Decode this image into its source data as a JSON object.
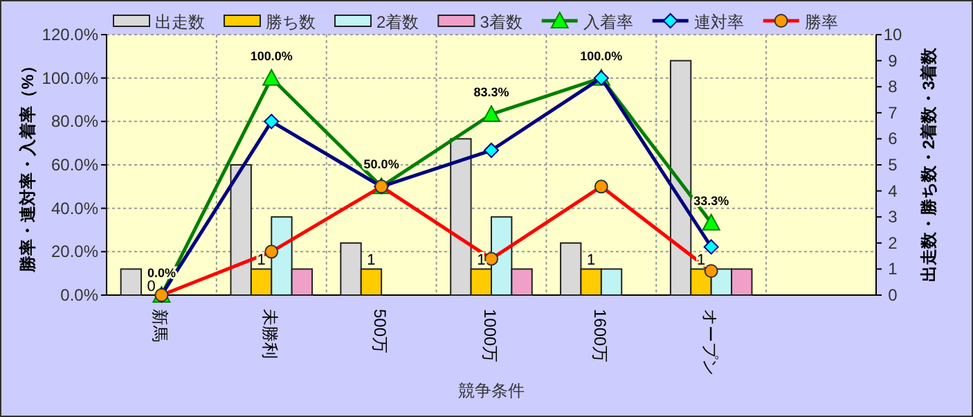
{
  "chart_data": {
    "type": "bar",
    "xlabel": "競争条件",
    "ylabel": "勝率・連対率・入着率（%）",
    "y2label": "出走数・勝ち数・2着数・3着数",
    "categories": [
      "新馬",
      "未勝利",
      "500万",
      "1000万",
      "1600万",
      "オープン",
      null
    ],
    "series": [
      {
        "name": "出走数",
        "type": "bar",
        "axis": "y2",
        "color": "#d9d9d9",
        "values": [
          1,
          5,
          2,
          6,
          2,
          9,
          null
        ]
      },
      {
        "name": "勝ち数",
        "type": "bar",
        "axis": "y2",
        "color": "#ffcc00",
        "values": [
          0,
          1,
          1,
          1,
          1,
          1,
          null
        ],
        "value_labels": [
          "0",
          "1",
          "1",
          "1",
          "1",
          "1",
          null
        ]
      },
      {
        "name": "2着数",
        "type": "bar",
        "axis": "y2",
        "color": "#c0f4f4",
        "values": [
          0,
          3,
          0,
          3,
          1,
          1,
          null
        ]
      },
      {
        "name": "3着数",
        "type": "bar",
        "axis": "y2",
        "color": "#f0a0c8",
        "values": [
          0,
          1,
          0,
          1,
          0,
          1,
          null
        ]
      },
      {
        "name": "入着率",
        "type": "line",
        "color": "#008000",
        "marker": "triangle",
        "values": [
          0,
          100,
          50,
          83.3,
          100,
          33.3,
          null
        ],
        "value_labels": [
          "0.0%",
          "100.0%",
          "50.0%",
          "83.3%",
          "100.0%",
          "33.3%",
          null
        ]
      },
      {
        "name": "連対率",
        "type": "line",
        "color": "#000080",
        "marker": "diamond",
        "values": [
          0,
          80,
          50,
          66.7,
          100,
          22.2,
          null
        ]
      },
      {
        "name": "勝率",
        "type": "line",
        "color": "#ff0000",
        "marker": "circle",
        "values": [
          0,
          20,
          50,
          16.7,
          50,
          11.1,
          null
        ]
      }
    ],
    "ylim": [
      0,
      120
    ],
    "yticks": [
      {
        "value": 0,
        "label": "0.0%"
      },
      {
        "value": 20,
        "label": "20.0%"
      },
      {
        "value": 40,
        "label": "40.0%"
      },
      {
        "value": 60,
        "label": "60.0%"
      },
      {
        "value": 80,
        "label": "80.0%"
      },
      {
        "value": 100,
        "label": "100.0%"
      },
      {
        "value": 120,
        "label": "120.0%"
      }
    ],
    "y2lim": [
      0,
      10
    ],
    "y2ticks": [
      0,
      1,
      2,
      3,
      4,
      5,
      6,
      7,
      8,
      9,
      10
    ],
    "grid": true,
    "legend": "top"
  }
}
